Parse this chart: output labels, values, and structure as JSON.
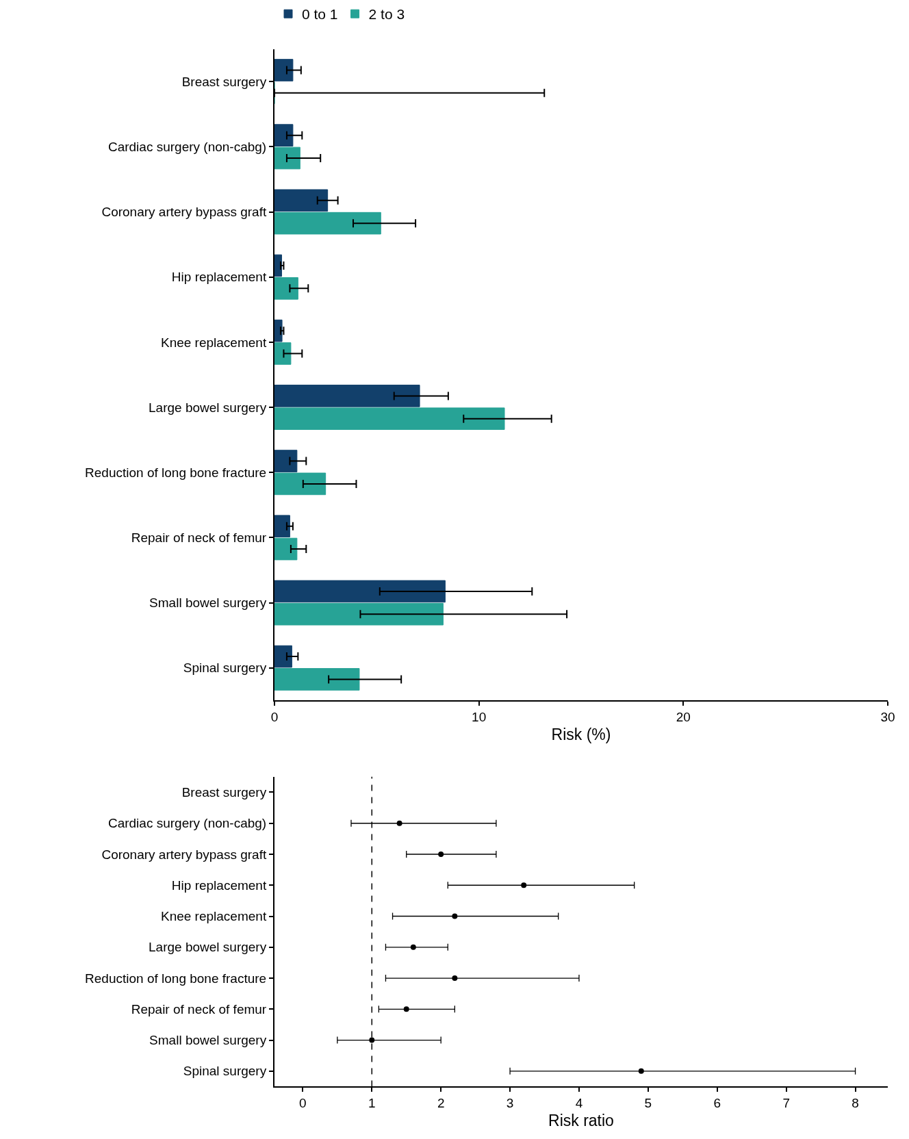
{
  "chart_data": [
    {
      "type": "bar",
      "orientation": "horizontal",
      "xlabel": "Risk (%)",
      "xlim": [
        0,
        30
      ],
      "xticks": [
        0,
        10,
        20,
        30
      ],
      "legend": "top",
      "grid": false,
      "categories": [
        "Breast surgery",
        "Cardiac surgery (non-cabg)",
        "Coronary artery bypass graft",
        "Hip replacement",
        "Knee replacement",
        "Large bowel surgery",
        "Reduction of long bone fracture",
        "Repair of neck of femur",
        "Small bowel surgery",
        "Spinal surgery"
      ],
      "series": [
        {
          "name": "0 to 1",
          "color": "#12406b",
          "values": [
            0.9,
            0.9,
            2.6,
            0.35,
            0.37,
            7.1,
            1.1,
            0.75,
            8.35,
            0.85
          ],
          "errors": [
            [
              0.6,
              1.3
            ],
            [
              0.6,
              1.35
            ],
            [
              2.1,
              3.1
            ],
            [
              0.3,
              0.45
            ],
            [
              0.3,
              0.45
            ],
            [
              5.85,
              8.5
            ],
            [
              0.75,
              1.55
            ],
            [
              0.6,
              0.9
            ],
            [
              5.15,
              12.6
            ],
            [
              0.6,
              1.15
            ]
          ]
        },
        {
          "name": "2 to 3",
          "color": "#27a396",
          "values": [
            0,
            1.25,
            5.2,
            1.15,
            0.8,
            11.25,
            2.5,
            1.1,
            8.25,
            4.15
          ],
          "errors": [
            [
              0,
              13.2
            ],
            [
              0.6,
              2.25
            ],
            [
              3.85,
              6.9
            ],
            [
              0.75,
              1.65
            ],
            [
              0.45,
              1.35
            ],
            [
              9.25,
              13.55
            ],
            [
              1.4,
              4.0
            ],
            [
              0.8,
              1.55
            ],
            [
              4.2,
              14.3
            ],
            [
              2.65,
              6.2
            ]
          ]
        }
      ]
    },
    {
      "type": "scatter",
      "orientation": "horizontal",
      "xlabel": "Risk ratio",
      "xlim": [
        -0.41,
        8.47
      ],
      "xticks": [
        0,
        1,
        2,
        3,
        4,
        5,
        6,
        7,
        8
      ],
      "grid": false,
      "marker": "circle",
      "categories": [
        "Breast surgery",
        "Cardiac surgery (non-cabg)",
        "Coronary artery bypass graft",
        "Hip replacement",
        "Knee replacement",
        "Large bowel surgery",
        "Reduction of long bone fracture",
        "Repair of neck of femur",
        "Small bowel surgery",
        "Spinal surgery"
      ],
      "series": [
        {
          "color": "#000000",
          "values": [
            null,
            1.4,
            2.0,
            3.2,
            2.2,
            1.6,
            2.2,
            1.5,
            1.0,
            4.9
          ],
          "errors": [
            null,
            [
              0.7,
              2.8
            ],
            [
              1.5,
              2.8
            ],
            [
              2.1,
              4.8
            ],
            [
              1.3,
              3.7
            ],
            [
              1.2,
              2.1
            ],
            [
              1.2,
              4.0
            ],
            [
              1.1,
              2.2
            ],
            [
              0.5,
              2.0
            ],
            [
              3.0,
              8.0
            ]
          ]
        }
      ],
      "ref_lines": [
        {
          "axis": "x",
          "value": 1,
          "line_style": "dashed",
          "color": "#000000"
        }
      ]
    }
  ]
}
